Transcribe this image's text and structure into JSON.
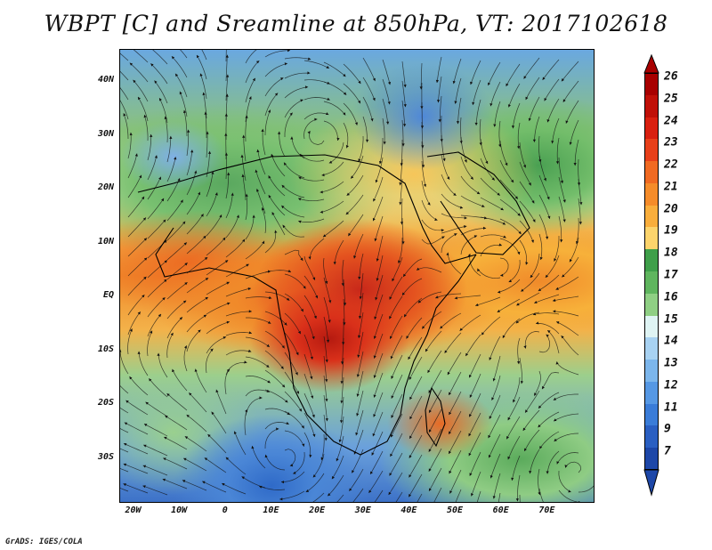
{
  "title": "WBPT [C] and Sreamline at 850hPa, VT: 2017102618",
  "credit": "GrADS: IGES/COLA",
  "axes": {
    "y_labels": [
      "40N",
      "30N",
      "20N",
      "10N",
      "EQ",
      "10S",
      "20S",
      "30S"
    ],
    "x_labels": [
      "20W",
      "10W",
      "0",
      "10E",
      "20E",
      "30E",
      "40E",
      "50E",
      "60E",
      "70E"
    ]
  },
  "colorbar": {
    "labels": [
      "26",
      "25",
      "24",
      "23",
      "22",
      "21",
      "20",
      "19",
      "18",
      "17",
      "16",
      "15",
      "14",
      "13",
      "12",
      "11",
      "9",
      "7"
    ],
    "colors": [
      "#a80000",
      "#c01008",
      "#d92010",
      "#e8401a",
      "#f06a22",
      "#f58c2a",
      "#f9ae3c",
      "#fcd46c",
      "#3f9f4a",
      "#5fb55e",
      "#8fcf84",
      "#dff4f4",
      "#a8d2f2",
      "#7cb6ec",
      "#5698e4",
      "#3a7cd8",
      "#2a5fc2",
      "#1d47a8"
    ]
  },
  "chart_data": {
    "type": "heatmap",
    "title": "WBPT [C] and Sreamline at 850hPa, VT: 2017102618",
    "variable": "WBPT [C]",
    "level": "850hPa",
    "valid_time": "2017102618",
    "lon_range": [
      -20,
      80
    ],
    "lat_range": [
      -35,
      45
    ],
    "colorbar_levels": [
      7,
      9,
      11,
      12,
      13,
      14,
      15,
      16,
      17,
      18,
      19,
      20,
      21,
      22,
      23,
      24,
      25,
      26
    ],
    "overlay": "streamlines"
  }
}
